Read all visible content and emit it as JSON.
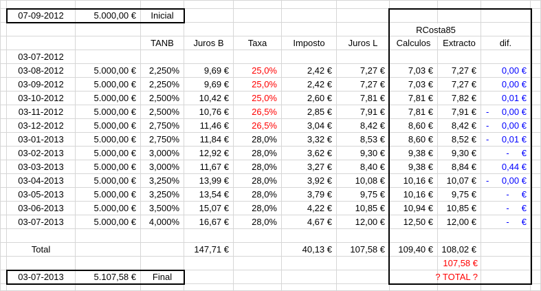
{
  "colors": {
    "red": "#ff0000",
    "blue": "#0000ff",
    "grid": "#d6d6d6",
    "border": "#000000"
  },
  "top_box": {
    "date": "07-09-2012",
    "amount": "5.000,00 €",
    "label": "Inicial"
  },
  "group_header": "RCosta85",
  "columns": {
    "tanb": "TANB",
    "juros_b": "Juros B",
    "taxa": "Taxa",
    "imposto": "Imposto",
    "juros_l": "Juros L",
    "calculos": "Calculos",
    "extracto": "Extracto",
    "dif": "dif."
  },
  "start_date_row": "03-07-2012",
  "rows": [
    {
      "date": "03-08-2012",
      "amount": "5.000,00 €",
      "tanb": "2,250%",
      "juros_b": "9,69 €",
      "taxa": "25,0%",
      "taxa_red": true,
      "imposto": "2,42 €",
      "juros_l": "7,27 €",
      "calculos": "7,03 €",
      "extracto": "7,27 €",
      "dif_minus": "",
      "dif": "0,00 €"
    },
    {
      "date": "03-09-2012",
      "amount": "5.000,00 €",
      "tanb": "2,250%",
      "juros_b": "9,69 €",
      "taxa": "25,0%",
      "taxa_red": true,
      "imposto": "2,42 €",
      "juros_l": "7,27 €",
      "calculos": "7,03 €",
      "extracto": "7,27 €",
      "dif_minus": "",
      "dif": "0,00 €"
    },
    {
      "date": "03-10-2012",
      "amount": "5.000,00 €",
      "tanb": "2,500%",
      "juros_b": "10,42 €",
      "taxa": "25,0%",
      "taxa_red": true,
      "imposto": "2,60 €",
      "juros_l": "7,81 €",
      "calculos": "7,81 €",
      "extracto": "7,82 €",
      "dif_minus": "",
      "dif": "0,01 €"
    },
    {
      "date": "03-11-2012",
      "amount": "5.000,00 €",
      "tanb": "2,500%",
      "juros_b": "10,76 €",
      "taxa": "26,5%",
      "taxa_red": true,
      "imposto": "2,85 €",
      "juros_l": "7,91 €",
      "calculos": "7,81 €",
      "extracto": "7,91 €",
      "dif_minus": "-",
      "dif": "0,00 €"
    },
    {
      "date": "03-12-2012",
      "amount": "5.000,00 €",
      "tanb": "2,750%",
      "juros_b": "11,46 €",
      "taxa": "26,5%",
      "taxa_red": true,
      "imposto": "3,04 €",
      "juros_l": "8,42 €",
      "calculos": "8,60 €",
      "extracto": "8,42 €",
      "dif_minus": "-",
      "dif": "0,00 €"
    },
    {
      "date": "03-01-2013",
      "amount": "5.000,00 €",
      "tanb": "2,750%",
      "juros_b": "11,84 €",
      "taxa": "28,0%",
      "taxa_red": false,
      "imposto": "3,32 €",
      "juros_l": "8,53 €",
      "calculos": "8,60 €",
      "extracto": "8,52 €",
      "dif_minus": "-",
      "dif": "0,01 €"
    },
    {
      "date": "03-02-2013",
      "amount": "5.000,00 €",
      "tanb": "3,000%",
      "juros_b": "12,92 €",
      "taxa": "28,0%",
      "taxa_red": false,
      "imposto": "3,62 €",
      "juros_l": "9,30 €",
      "calculos": "9,38 €",
      "extracto": "9,30 €",
      "dif_minus": "",
      "dif": "-     €"
    },
    {
      "date": "03-03-2013",
      "amount": "5.000,00 €",
      "tanb": "3,000%",
      "juros_b": "11,67 €",
      "taxa": "28,0%",
      "taxa_red": false,
      "imposto": "3,27 €",
      "juros_l": "8,40 €",
      "calculos": "9,38 €",
      "extracto": "8,84 €",
      "dif_minus": "",
      "dif": "0,44 €"
    },
    {
      "date": "03-04-2013",
      "amount": "5.000,00 €",
      "tanb": "3,250%",
      "juros_b": "13,99 €",
      "taxa": "28,0%",
      "taxa_red": false,
      "imposto": "3,92 €",
      "juros_l": "10,08 €",
      "calculos": "10,16 €",
      "extracto": "10,07 €",
      "dif_minus": "-",
      "dif": "0,00 €"
    },
    {
      "date": "03-05-2013",
      "amount": "5.000,00 €",
      "tanb": "3,250%",
      "juros_b": "13,54 €",
      "taxa": "28,0%",
      "taxa_red": false,
      "imposto": "3,79 €",
      "juros_l": "9,75 €",
      "calculos": "10,16 €",
      "extracto": "9,75 €",
      "dif_minus": "",
      "dif": "-     €"
    },
    {
      "date": "03-06-2013",
      "amount": "5.000,00 €",
      "tanb": "3,500%",
      "juros_b": "15,07 €",
      "taxa": "28,0%",
      "taxa_red": false,
      "imposto": "4,22 €",
      "juros_l": "10,85 €",
      "calculos": "10,94 €",
      "extracto": "10,85 €",
      "dif_minus": "",
      "dif": "-     €"
    },
    {
      "date": "03-07-2013",
      "amount": "5.000,00 €",
      "tanb": "4,000%",
      "juros_b": "16,67 €",
      "taxa": "28,0%",
      "taxa_red": false,
      "imposto": "4,67 €",
      "juros_l": "12,00 €",
      "calculos": "12,50 €",
      "extracto": "12,00 €",
      "dif_minus": "",
      "dif": "-     €"
    }
  ],
  "total_row": {
    "label": "Total",
    "juros_b": "147,71 €",
    "imposto": "40,13 €",
    "juros_l": "107,58 €",
    "calculos": "109,40 €",
    "extracto": "108,02 €"
  },
  "extracto_check": "107,58 €",
  "total_question": "? TOTAL ?",
  "bottom_box": {
    "date": "03-07-2013",
    "amount": "5.107,58 €",
    "label": "Final"
  }
}
